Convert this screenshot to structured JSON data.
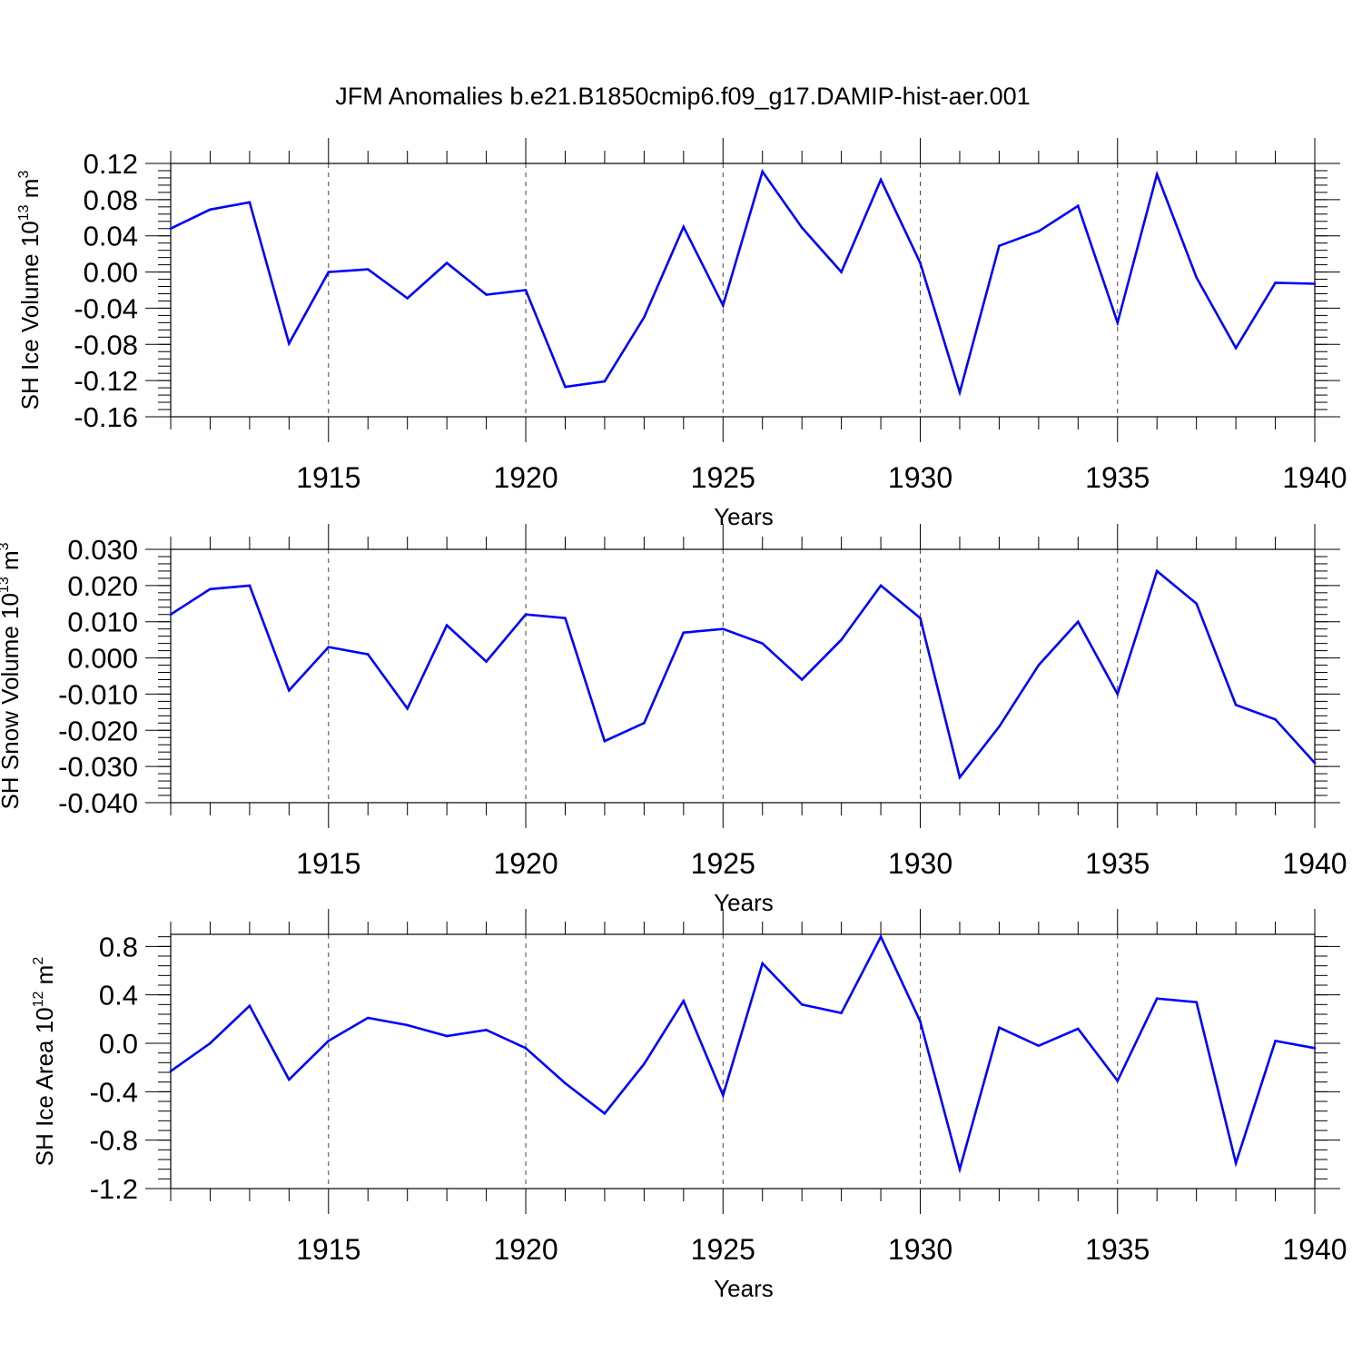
{
  "figure": {
    "title": "JFM Anomalies b.e21.B1850cmip6.f09_g17.DAMIP-hist-aer.001",
    "line_color": "#0000ff"
  },
  "chart_data": [
    {
      "type": "line",
      "name": "ice-volume",
      "ylabel_main": "SH Ice Volume 10",
      "ylabel_exp": "13",
      "ylabel_unit": " m",
      "ylabel_unit_exp": "3",
      "xlabel": "Years",
      "xlim": [
        1911,
        1940
      ],
      "ylim": [
        -0.16,
        0.12
      ],
      "yticks": [
        -0.16,
        -0.12,
        -0.08,
        -0.04,
        0.0,
        0.04,
        0.08,
        0.12
      ],
      "ytick_labels": [
        "-0.16",
        "-0.12",
        "-0.08",
        "-0.04",
        "0.00",
        "0.04",
        "0.08",
        "0.12"
      ],
      "yminor_step": 0.008,
      "xticks": [
        1915,
        1920,
        1925,
        1930,
        1935,
        1940
      ],
      "xtick_labels": [
        "1915",
        "1920",
        "1925",
        "1930",
        "1935",
        "1940"
      ],
      "years": [
        1911,
        1912,
        1913,
        1914,
        1915,
        1916,
        1917,
        1918,
        1919,
        1920,
        1921,
        1922,
        1923,
        1924,
        1925,
        1926,
        1927,
        1928,
        1929,
        1930,
        1931,
        1932,
        1933,
        1934,
        1935,
        1936,
        1937,
        1938,
        1939,
        1940
      ],
      "values": [
        0.048,
        0.069,
        0.077,
        -0.079,
        0.0,
        0.003,
        -0.029,
        0.01,
        -0.025,
        -0.02,
        -0.127,
        -0.121,
        -0.05,
        0.05,
        -0.037,
        0.111,
        0.049,
        0.0,
        0.102,
        0.01,
        -0.133,
        0.029,
        0.045,
        0.073,
        -0.056,
        0.108,
        -0.006,
        -0.084,
        -0.012,
        -0.013
      ]
    },
    {
      "type": "line",
      "name": "snow-volume",
      "ylabel_main": "SH Snow Volume 10",
      "ylabel_exp": "13",
      "ylabel_unit": " m",
      "ylabel_unit_exp": "3",
      "xlabel": "Years",
      "xlim": [
        1911,
        1940
      ],
      "ylim": [
        -0.04,
        0.03
      ],
      "yticks": [
        -0.04,
        -0.03,
        -0.02,
        -0.01,
        0.0,
        0.01,
        0.02,
        0.03
      ],
      "ytick_labels": [
        "-0.040",
        "-0.030",
        "-0.020",
        "-0.010",
        "0.000",
        "0.010",
        "0.020",
        "0.030"
      ],
      "yminor_step": 0.002,
      "xticks": [
        1915,
        1920,
        1925,
        1930,
        1935,
        1940
      ],
      "xtick_labels": [
        "1915",
        "1920",
        "1925",
        "1930",
        "1935",
        "1940"
      ],
      "years": [
        1911,
        1912,
        1913,
        1914,
        1915,
        1916,
        1917,
        1918,
        1919,
        1920,
        1921,
        1922,
        1923,
        1924,
        1925,
        1926,
        1927,
        1928,
        1929,
        1930,
        1931,
        1932,
        1933,
        1934,
        1935,
        1936,
        1937,
        1938,
        1939,
        1940
      ],
      "values": [
        0.012,
        0.019,
        0.02,
        -0.009,
        0.003,
        0.001,
        -0.014,
        0.009,
        -0.001,
        0.012,
        0.011,
        -0.023,
        -0.018,
        0.007,
        0.008,
        0.004,
        -0.006,
        0.005,
        0.02,
        0.011,
        -0.033,
        -0.019,
        -0.002,
        0.01,
        -0.01,
        0.024,
        0.015,
        -0.013,
        -0.017,
        -0.029
      ]
    },
    {
      "type": "line",
      "name": "ice-area",
      "ylabel_main": "SH Ice Area 10",
      "ylabel_exp": "12",
      "ylabel_unit": " m",
      "ylabel_unit_exp": "2",
      "xlabel": "Years",
      "xlim": [
        1911,
        1940
      ],
      "ylim": [
        -1.2,
        0.9
      ],
      "yticks": [
        -1.2,
        -0.8,
        -0.4,
        0.0,
        0.4,
        0.8
      ],
      "ytick_labels": [
        "-1.2",
        "-0.8",
        "-0.4",
        "0.0",
        "0.4",
        "0.8"
      ],
      "yminor_step": 0.08,
      "xticks": [
        1915,
        1920,
        1925,
        1930,
        1935,
        1940
      ],
      "xtick_labels": [
        "1915",
        "1920",
        "1925",
        "1930",
        "1935",
        "1940"
      ],
      "years": [
        1911,
        1912,
        1913,
        1914,
        1915,
        1916,
        1917,
        1918,
        1919,
        1920,
        1921,
        1922,
        1923,
        1924,
        1925,
        1926,
        1927,
        1928,
        1929,
        1930,
        1931,
        1932,
        1933,
        1934,
        1935,
        1936,
        1937,
        1938,
        1939,
        1940
      ],
      "values": [
        -0.23,
        0.0,
        0.31,
        -0.3,
        0.02,
        0.21,
        0.15,
        0.06,
        0.11,
        -0.04,
        -0.33,
        -0.58,
        -0.17,
        0.35,
        -0.43,
        0.66,
        0.32,
        0.25,
        0.88,
        0.18,
        -1.04,
        0.13,
        -0.02,
        0.12,
        -0.31,
        0.37,
        0.34,
        -0.99,
        0.02,
        -0.04
      ]
    }
  ]
}
